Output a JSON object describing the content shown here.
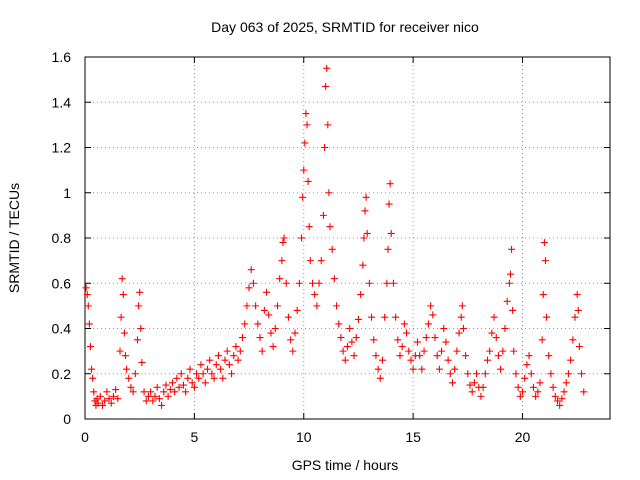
{
  "chart_data": {
    "type": "scatter",
    "title": "Day 063 of 2025, SRMTID for receiver nico",
    "xlabel": "GPS time / hours",
    "ylabel": "SRMTID / TECUs",
    "xlim": [
      0,
      24
    ],
    "ylim": [
      0,
      1.6
    ],
    "xticks": [
      0,
      5,
      10,
      15,
      20
    ],
    "xtick_labels": [
      "0",
      "5",
      "10",
      "15",
      "20"
    ],
    "yticks": [
      0,
      0.2,
      0.4,
      0.6,
      0.8,
      1,
      1.2,
      1.4,
      1.6
    ],
    "ytick_labels": [
      "0",
      "0.2",
      "0.4",
      "0.6",
      "0.8",
      "1",
      "1.2",
      "1.4",
      "1.6"
    ],
    "grid": true,
    "marker": "plus",
    "color": "#ff0000",
    "series": [
      {
        "name": "SRMTID",
        "points": [
          [
            0.05,
            0.58
          ],
          [
            0.1,
            0.55
          ],
          [
            0.15,
            0.5
          ],
          [
            0.2,
            0.42
          ],
          [
            0.25,
            0.32
          ],
          [
            0.3,
            0.22
          ],
          [
            0.35,
            0.18
          ],
          [
            0.4,
            0.12
          ],
          [
            0.45,
            0.08
          ],
          [
            0.5,
            0.06
          ],
          [
            0.55,
            0.09
          ],
          [
            0.6,
            0.07
          ],
          [
            0.7,
            0.1
          ],
          [
            0.8,
            0.06
          ],
          [
            0.9,
            0.08
          ],
          [
            1.0,
            0.12
          ],
          [
            1.1,
            0.09
          ],
          [
            1.2,
            0.07
          ],
          [
            1.3,
            0.1
          ],
          [
            1.4,
            0.13
          ],
          [
            1.5,
            0.09
          ],
          [
            1.6,
            0.3
          ],
          [
            1.65,
            0.45
          ],
          [
            1.7,
            0.62
          ],
          [
            1.75,
            0.55
          ],
          [
            1.8,
            0.38
          ],
          [
            1.85,
            0.28
          ],
          [
            1.9,
            0.22
          ],
          [
            2.0,
            0.18
          ],
          [
            2.1,
            0.14
          ],
          [
            2.2,
            0.12
          ],
          [
            2.3,
            0.2
          ],
          [
            2.4,
            0.35
          ],
          [
            2.45,
            0.5
          ],
          [
            2.5,
            0.56
          ],
          [
            2.55,
            0.4
          ],
          [
            2.6,
            0.25
          ],
          [
            2.7,
            0.12
          ],
          [
            2.8,
            0.08
          ],
          [
            2.9,
            0.1
          ],
          [
            3.0,
            0.12
          ],
          [
            3.1,
            0.08
          ],
          [
            3.2,
            0.1
          ],
          [
            3.3,
            0.14
          ],
          [
            3.4,
            0.09
          ],
          [
            3.5,
            0.06
          ],
          [
            3.6,
            0.12
          ],
          [
            3.7,
            0.15
          ],
          [
            3.8,
            0.1
          ],
          [
            3.9,
            0.13
          ],
          [
            4.0,
            0.16
          ],
          [
            4.1,
            0.12
          ],
          [
            4.2,
            0.18
          ],
          [
            4.3,
            0.14
          ],
          [
            4.4,
            0.2
          ],
          [
            4.5,
            0.15
          ],
          [
            4.6,
            0.12
          ],
          [
            4.7,
            0.18
          ],
          [
            4.8,
            0.22
          ],
          [
            4.9,
            0.16
          ],
          [
            5.0,
            0.14
          ],
          [
            5.1,
            0.2
          ],
          [
            5.2,
            0.18
          ],
          [
            5.3,
            0.24
          ],
          [
            5.4,
            0.2
          ],
          [
            5.5,
            0.16
          ],
          [
            5.6,
            0.22
          ],
          [
            5.7,
            0.26
          ],
          [
            5.8,
            0.2
          ],
          [
            5.9,
            0.18
          ],
          [
            6.0,
            0.24
          ],
          [
            6.1,
            0.28
          ],
          [
            6.2,
            0.22
          ],
          [
            6.3,
            0.18
          ],
          [
            6.4,
            0.26
          ],
          [
            6.5,
            0.3
          ],
          [
            6.6,
            0.24
          ],
          [
            6.7,
            0.2
          ],
          [
            6.8,
            0.28
          ],
          [
            6.9,
            0.32
          ],
          [
            7.0,
            0.26
          ],
          [
            7.1,
            0.3
          ],
          [
            7.2,
            0.36
          ],
          [
            7.3,
            0.42
          ],
          [
            7.4,
            0.5
          ],
          [
            7.5,
            0.58
          ],
          [
            7.6,
            0.66
          ],
          [
            7.7,
            0.6
          ],
          [
            7.8,
            0.5
          ],
          [
            7.9,
            0.42
          ],
          [
            8.0,
            0.36
          ],
          [
            8.1,
            0.3
          ],
          [
            8.2,
            0.48
          ],
          [
            8.3,
            0.56
          ],
          [
            8.4,
            0.46
          ],
          [
            8.5,
            0.38
          ],
          [
            8.6,
            0.32
          ],
          [
            8.7,
            0.4
          ],
          [
            8.8,
            0.5
          ],
          [
            8.9,
            0.62
          ],
          [
            9.0,
            0.7
          ],
          [
            9.05,
            0.78
          ],
          [
            9.1,
            0.8
          ],
          [
            9.2,
            0.6
          ],
          [
            9.3,
            0.45
          ],
          [
            9.4,
            0.35
          ],
          [
            9.5,
            0.3
          ],
          [
            9.6,
            0.38
          ],
          [
            9.7,
            0.48
          ],
          [
            9.8,
            0.6
          ],
          [
            9.9,
            0.8
          ],
          [
            9.95,
            0.98
          ],
          [
            10.0,
            1.1
          ],
          [
            10.05,
            1.22
          ],
          [
            10.1,
            1.35
          ],
          [
            10.15,
            1.3
          ],
          [
            10.2,
            1.05
          ],
          [
            10.25,
            0.85
          ],
          [
            10.3,
            0.7
          ],
          [
            10.4,
            0.6
          ],
          [
            10.5,
            0.55
          ],
          [
            10.6,
            0.5
          ],
          [
            10.7,
            0.6
          ],
          [
            10.8,
            0.7
          ],
          [
            10.9,
            0.9
          ],
          [
            10.95,
            1.2
          ],
          [
            11.0,
            1.47
          ],
          [
            11.05,
            1.55
          ],
          [
            11.1,
            1.3
          ],
          [
            11.15,
            1.0
          ],
          [
            11.2,
            0.85
          ],
          [
            11.3,
            0.75
          ],
          [
            11.4,
            0.62
          ],
          [
            11.5,
            0.5
          ],
          [
            11.6,
            0.42
          ],
          [
            11.7,
            0.36
          ],
          [
            11.8,
            0.3
          ],
          [
            11.9,
            0.26
          ],
          [
            12.0,
            0.32
          ],
          [
            12.1,
            0.4
          ],
          [
            12.2,
            0.34
          ],
          [
            12.3,
            0.28
          ],
          [
            12.4,
            0.36
          ],
          [
            12.5,
            0.44
          ],
          [
            12.6,
            0.55
          ],
          [
            12.7,
            0.68
          ],
          [
            12.75,
            0.8
          ],
          [
            12.8,
            0.92
          ],
          [
            12.85,
            0.98
          ],
          [
            12.9,
            0.82
          ],
          [
            13.0,
            0.6
          ],
          [
            13.1,
            0.45
          ],
          [
            13.2,
            0.35
          ],
          [
            13.3,
            0.28
          ],
          [
            13.4,
            0.22
          ],
          [
            13.5,
            0.18
          ],
          [
            13.6,
            0.26
          ],
          [
            13.7,
            0.45
          ],
          [
            13.8,
            0.6
          ],
          [
            13.85,
            0.75
          ],
          [
            13.9,
            0.95
          ],
          [
            13.95,
            1.04
          ],
          [
            14.0,
            0.82
          ],
          [
            14.1,
            0.6
          ],
          [
            14.2,
            0.45
          ],
          [
            14.3,
            0.35
          ],
          [
            14.4,
            0.28
          ],
          [
            14.5,
            0.32
          ],
          [
            14.6,
            0.42
          ],
          [
            14.7,
            0.38
          ],
          [
            14.8,
            0.3
          ],
          [
            14.9,
            0.26
          ],
          [
            15.0,
            0.22
          ],
          [
            15.1,
            0.28
          ],
          [
            15.2,
            0.34
          ],
          [
            15.3,
            0.28
          ],
          [
            15.4,
            0.22
          ],
          [
            15.5,
            0.3
          ],
          [
            15.6,
            0.36
          ],
          [
            15.7,
            0.42
          ],
          [
            15.8,
            0.5
          ],
          [
            15.9,
            0.46
          ],
          [
            16.0,
            0.36
          ],
          [
            16.1,
            0.28
          ],
          [
            16.2,
            0.22
          ],
          [
            16.3,
            0.3
          ],
          [
            16.4,
            0.4
          ],
          [
            16.5,
            0.34
          ],
          [
            16.6,
            0.26
          ],
          [
            16.7,
            0.2
          ],
          [
            16.8,
            0.16
          ],
          [
            16.9,
            0.22
          ],
          [
            17.0,
            0.3
          ],
          [
            17.1,
            0.38
          ],
          [
            17.2,
            0.45
          ],
          [
            17.25,
            0.5
          ],
          [
            17.3,
            0.4
          ],
          [
            17.4,
            0.28
          ],
          [
            17.5,
            0.2
          ],
          [
            17.6,
            0.15
          ],
          [
            17.7,
            0.12
          ],
          [
            17.8,
            0.16
          ],
          [
            17.9,
            0.2
          ],
          [
            18.0,
            0.14
          ],
          [
            18.1,
            0.1
          ],
          [
            18.2,
            0.14
          ],
          [
            18.3,
            0.2
          ],
          [
            18.4,
            0.26
          ],
          [
            18.5,
            0.3
          ],
          [
            18.6,
            0.38
          ],
          [
            18.7,
            0.45
          ],
          [
            18.8,
            0.36
          ],
          [
            18.9,
            0.28
          ],
          [
            19.0,
            0.22
          ],
          [
            19.1,
            0.3
          ],
          [
            19.2,
            0.4
          ],
          [
            19.3,
            0.52
          ],
          [
            19.4,
            0.6
          ],
          [
            19.45,
            0.64
          ],
          [
            19.5,
            0.75
          ],
          [
            19.55,
            0.48
          ],
          [
            19.6,
            0.3
          ],
          [
            19.7,
            0.2
          ],
          [
            19.8,
            0.14
          ],
          [
            19.9,
            0.1
          ],
          [
            20.0,
            0.12
          ],
          [
            20.1,
            0.18
          ],
          [
            20.2,
            0.24
          ],
          [
            20.3,
            0.28
          ],
          [
            20.4,
            0.2
          ],
          [
            20.5,
            0.14
          ],
          [
            20.6,
            0.1
          ],
          [
            20.7,
            0.12
          ],
          [
            20.8,
            0.16
          ],
          [
            20.9,
            0.35
          ],
          [
            20.95,
            0.55
          ],
          [
            21.0,
            0.78
          ],
          [
            21.05,
            0.7
          ],
          [
            21.1,
            0.45
          ],
          [
            21.2,
            0.28
          ],
          [
            21.3,
            0.2
          ],
          [
            21.4,
            0.14
          ],
          [
            21.5,
            0.1
          ],
          [
            21.6,
            0.08
          ],
          [
            21.7,
            0.06
          ],
          [
            21.8,
            0.09
          ],
          [
            21.9,
            0.12
          ],
          [
            22.0,
            0.16
          ],
          [
            22.1,
            0.2
          ],
          [
            22.2,
            0.26
          ],
          [
            22.3,
            0.35
          ],
          [
            22.4,
            0.45
          ],
          [
            22.5,
            0.55
          ],
          [
            22.55,
            0.48
          ],
          [
            22.6,
            0.32
          ],
          [
            22.7,
            0.2
          ],
          [
            22.8,
            0.12
          ]
        ]
      }
    ]
  }
}
